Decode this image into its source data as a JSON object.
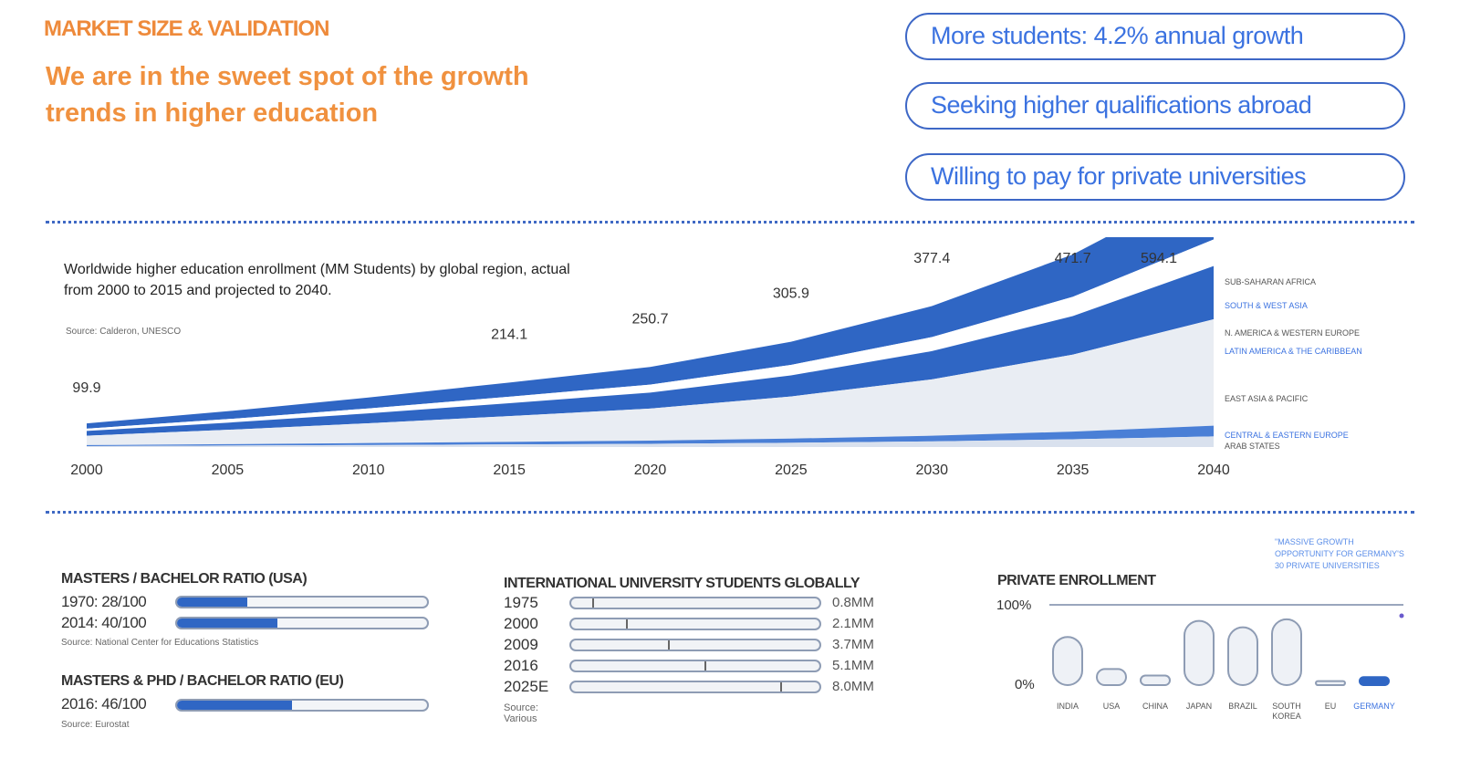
{
  "header": {
    "kicker": "MARKET SIZE & VALIDATION",
    "headline": "We are in the sweet spot of the growth trends in higher education"
  },
  "pills": [
    "More students: 4.2% annual growth",
    "Seeking higher qualifications abroad",
    "Willing to pay for private universities"
  ],
  "colors": {
    "orange": "#f0913f",
    "blue": "#2f66c4",
    "light_fill": "#e9edf3"
  },
  "chart_data": [
    {
      "type": "area",
      "title": "Worldwide higher education enrollment (MM Students) by global region, actual from 2000 to 2015 and projected to 2040.",
      "source": "Source: Calderon, UNESCO",
      "x": [
        "2000",
        "2005",
        "2010",
        "2015",
        "2020",
        "2025",
        "2030",
        "2035",
        "2040"
      ],
      "totals": [
        99.9,
        null,
        null,
        214.1,
        250.7,
        305.9,
        377.4,
        471.7,
        594.1
      ],
      "total_labels": [
        "99.9",
        "",
        "",
        "214.1",
        "250.7",
        "305.9",
        "377.4",
        "471.7",
        "594.1"
      ],
      "series_labels": [
        "SUB-SAHARAN AFRICA",
        "SOUTH & WEST ASIA",
        "N. AMERICA & WESTERN EUROPE",
        "LATIN AMERICA & THE CARIBBEAN",
        "EAST ASIA & PACIFIC",
        "CENTRAL & EASTERN EUROPE",
        "ARAB STATES"
      ],
      "legend": "right"
    },
    {
      "type": "bar",
      "title": "MASTERS / BACHELOR RATIO (USA)",
      "rows": [
        {
          "label": "1970: 28/100",
          "value": 28
        },
        {
          "label": "2014: 40/100",
          "value": 40
        }
      ],
      "max": 100,
      "source": "Source: National Center for Educations Statistics"
    },
    {
      "type": "bar",
      "title": "MASTERS & PHD / BACHELOR RATIO (EU)",
      "rows": [
        {
          "label": "2016: 46/100",
          "value": 46
        }
      ],
      "max": 100,
      "source": "Source: Eurostat"
    },
    {
      "type": "bar",
      "title": "INTERNATIONAL UNIVERSITY STUDENTS GLOBALLY",
      "rows": [
        {
          "year": "1975",
          "value": 0.8,
          "label": "0.8MM"
        },
        {
          "year": "2000",
          "value": 2.1,
          "label": "2.1MM"
        },
        {
          "year": "2009",
          "value": 3.7,
          "label": "3.7MM"
        },
        {
          "year": "2016",
          "value": 5.1,
          "label": "5.1MM"
        },
        {
          "year": "2025E",
          "value": 8.0,
          "label": "8.0MM"
        }
      ],
      "max": 9.5,
      "source": "Source: Various"
    },
    {
      "type": "bar",
      "title": "PRIVATE ENROLLMENT",
      "categories": [
        "INDIA",
        "USA",
        "CHINA",
        "JAPAN",
        "BRAZIL",
        "SOUTH KOREA",
        "EU",
        "GERMANY"
      ],
      "values": [
        60,
        20,
        12,
        80,
        72,
        82,
        5,
        10
      ],
      "highlight": "GERMANY",
      "ylim": [
        0,
        100
      ],
      "ytick_labels": [
        "100%",
        "0%"
      ],
      "annotation": "\"MASSIVE GROWTH OPPORTUNITY FOR GERMANY'S 30 PRIVATE UNIVERSITIES"
    }
  ]
}
